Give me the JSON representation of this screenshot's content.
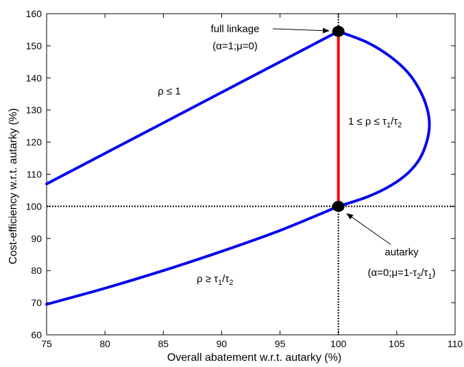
{
  "chart_data": {
    "type": "line",
    "xlabel": "Overall abatement w.r.t. autarky (%)",
    "ylabel": "Cost-efficiency w.r.t. autarky (%)",
    "xlim": [
      75,
      110
    ],
    "ylim": [
      60,
      160
    ],
    "xticks": [
      "75",
      "80",
      "85",
      "90",
      "95",
      "100",
      "105",
      "110"
    ],
    "yticks": [
      "60",
      "70",
      "80",
      "90",
      "100",
      "110",
      "120",
      "130",
      "140",
      "150",
      "160"
    ],
    "grid": false,
    "series": [
      {
        "color": "#0000ee",
        "x": [
          75,
          80,
          85,
          90,
          95,
          100
        ],
        "y": [
          107,
          116.5,
          126,
          135.5,
          145,
          154.5
        ]
      },
      {
        "color": "#0000ee",
        "x": [
          100,
          102.5,
          104.5,
          106,
          107,
          107.6,
          107.8,
          107.6,
          107,
          106,
          104.5,
          102.5,
          100
        ],
        "y": [
          154.5,
          151,
          146.5,
          141.5,
          136,
          130.5,
          125.5,
          120.5,
          115,
          110.5,
          106.5,
          103,
          100
        ]
      },
      {
        "color": "#0000ee",
        "x": [
          75,
          80,
          85,
          90,
          95,
          100
        ],
        "y": [
          69.5,
          74.5,
          80,
          86,
          92.5,
          100
        ]
      },
      {
        "color": "#ff0000",
        "x": [
          100,
          100
        ],
        "y": [
          100,
          154.5
        ]
      }
    ],
    "reference_lines": [
      {
        "orientation": "vertical",
        "value": 100,
        "style": "dotted"
      },
      {
        "orientation": "horizontal",
        "value": 100,
        "style": "dotted"
      }
    ],
    "markers": [
      {
        "x": 100,
        "y": 154.5
      },
      {
        "x": 100,
        "y": 100
      }
    ],
    "annotations": {
      "full_linkage": {
        "line1": "full linkage",
        "line2": "(α=1;μ=0)"
      },
      "autarky": {
        "line1": "autarky",
        "line2_main": "(α=0;μ=1-τ",
        "line2_sub1": "2",
        "line2_mid": "/τ",
        "line2_sub2": "1",
        "line2_end": ")"
      },
      "rho_le_1": "ρ ≤ 1",
      "rho_mid": {
        "main": "1 ≤ ρ ≤ τ",
        "sub1": "1",
        "mid": "/τ",
        "sub2": "2"
      },
      "rho_ge": {
        "main": "ρ ≥ τ",
        "sub1": "1",
        "mid": "/τ",
        "sub2": "2"
      }
    }
  }
}
